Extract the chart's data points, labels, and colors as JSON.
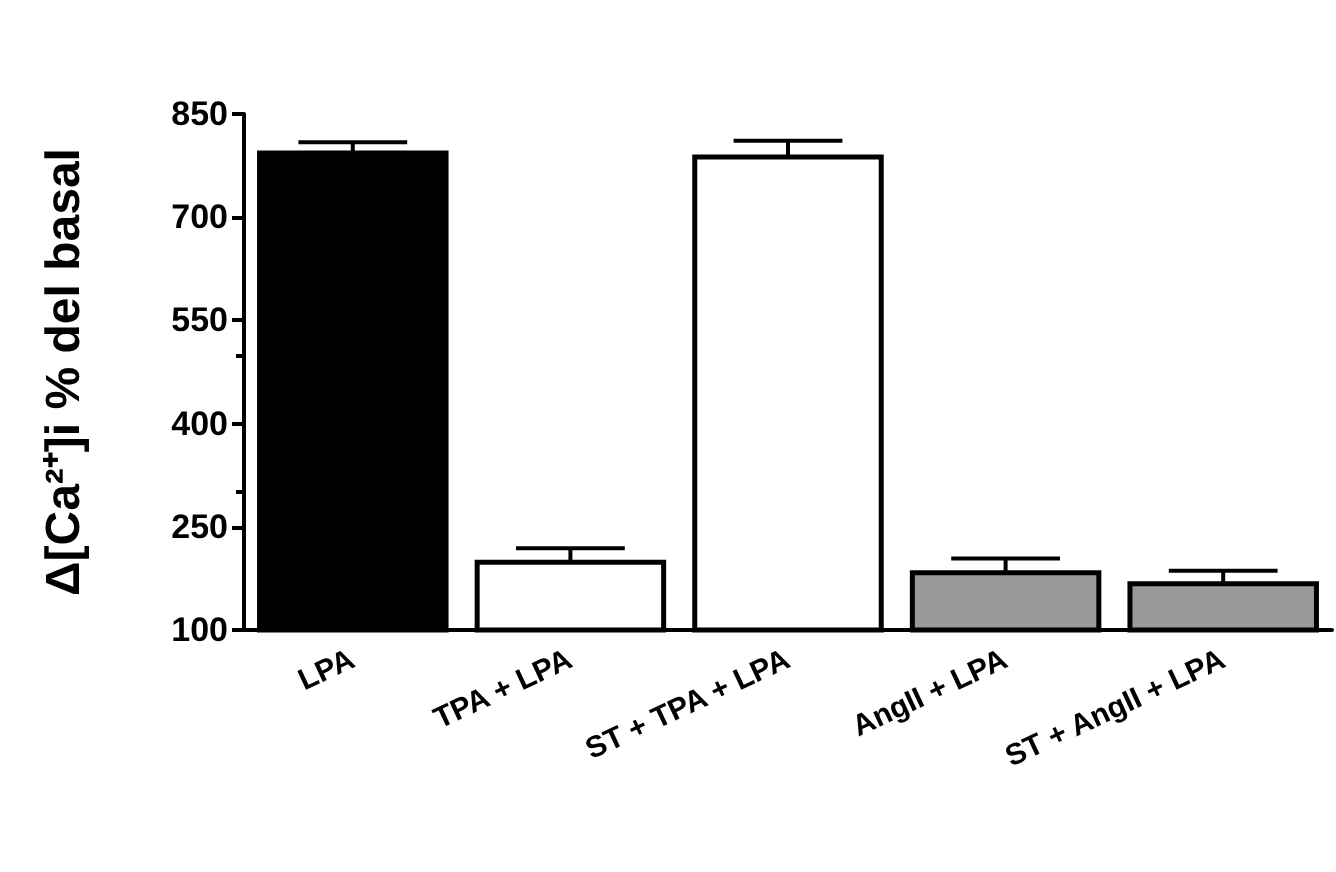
{
  "chart_data": {
    "type": "bar",
    "ylabel": "Δ[Ca²⁺]i % del basal",
    "categories": [
      "LPA",
      "TPA + LPA",
      "ST + TPA + LPA",
      "AngII + LPA",
      "ST + AngII + LPA"
    ],
    "values": [
      797,
      202,
      791,
      187,
      171
    ],
    "errors": [
      12,
      17,
      20,
      17,
      15
    ],
    "colors": [
      "#000000",
      "#ffffff",
      "#ffffff",
      "#999999",
      "#999999"
    ],
    "ylim": [
      100,
      850
    ],
    "yticks": [
      100,
      250,
      400,
      550,
      700,
      850
    ],
    "grid": false
  }
}
